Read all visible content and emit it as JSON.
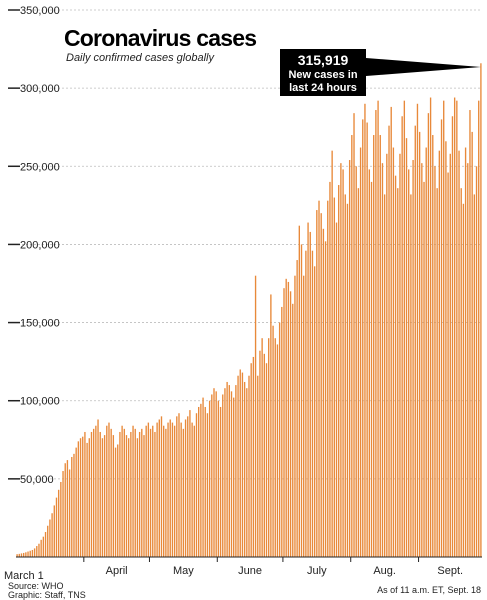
{
  "chart_data": {
    "type": "bar",
    "title": "Coronavirus cases",
    "subtitle": "Daily confirmed cases globally",
    "ylim": [
      0,
      350000
    ],
    "yticks": [
      50000,
      100000,
      150000,
      200000,
      250000,
      300000,
      350000
    ],
    "ytick_labels": [
      "50,000",
      "100,000",
      "150,000",
      "200,000",
      "250,000",
      "300,000",
      "350,000"
    ],
    "xtick_labels": [
      "March 1",
      "April",
      "May",
      "June",
      "July",
      "Aug.",
      "Sept."
    ],
    "xtick_positions": [
      0,
      31,
      61,
      92,
      122,
      153,
      184
    ],
    "grid": "horizontal",
    "bar_color": "#e8893a",
    "callout": {
      "value": "315,919",
      "lines": [
        "New cases in",
        "last 24 hours"
      ]
    },
    "annotations": {
      "source": "Source: WHO",
      "graphic": "Graphic: Staff, TNS",
      "as_of": "As of 11 a.m. ET, Sept. 18"
    },
    "series": [
      {
        "values": [
          1800,
          2000,
          2300,
          2600,
          3000,
          3500,
          4000,
          4500,
          5500,
          7000,
          8500,
          11000,
          13000,
          16000,
          20000,
          24000,
          28000,
          33000,
          38000,
          43000,
          48000,
          55000,
          60000,
          62000,
          56000,
          64000,
          66000,
          70000,
          74000,
          76000,
          77000,
          80000,
          73000,
          76000,
          80000,
          82000,
          84000,
          88000,
          80000,
          76000,
          78000,
          84000,
          86000,
          82000,
          78000,
          70000,
          72000,
          80000,
          84000,
          82000,
          78000,
          76000,
          80000,
          84000,
          82000,
          76000,
          80000,
          82000,
          78000,
          84000,
          86000,
          82000,
          84000,
          80000,
          86000,
          88000,
          90000,
          84000,
          82000,
          86000,
          88000,
          86000,
          84000,
          90000,
          92000,
          86000,
          82000,
          88000,
          90000,
          94000,
          86000,
          84000,
          92000,
          96000,
          98000,
          102000,
          96000,
          92000,
          100000,
          104000,
          108000,
          106000,
          100000,
          96000,
          104000,
          108000,
          112000,
          110000,
          106000,
          102000,
          110000,
          116000,
          120000,
          118000,
          112000,
          108000,
          116000,
          124000,
          128000,
          180000,
          116000,
          132000,
          140000,
          130000,
          124000,
          140000,
          168000,
          148000,
          140000,
          136000,
          150000,
          160000,
          172000,
          178000,
          176000,
          170000,
          162000,
          180000,
          190000,
          212000,
          200000,
          180000,
          196000,
          214000,
          208000,
          196000,
          186000,
          222000,
          228000,
          220000,
          210000,
          202000,
          228000,
          240000,
          260000,
          230000,
          214000,
          238000,
          252000,
          248000,
          232000,
          226000,
          254000,
          270000,
          284000,
          250000,
          236000,
          262000,
          280000,
          290000,
          278000,
          248000,
          240000,
          270000,
          286000,
          292000,
          270000,
          252000,
          232000,
          258000,
          276000,
          288000,
          262000,
          244000,
          236000,
          258000,
          282000,
          292000,
          268000,
          248000,
          232000,
          254000,
          276000,
          290000,
          272000,
          252000,
          240000,
          262000,
          284000,
          294000,
          270000,
          250000,
          236000,
          260000,
          280000,
          292000,
          266000,
          246000,
          258000,
          282000,
          294000,
          292000,
          260000,
          236000,
          226000,
          262000,
          252000,
          286000,
          272000,
          232000,
          250000,
          292000,
          315919
        ]
      }
    ]
  }
}
